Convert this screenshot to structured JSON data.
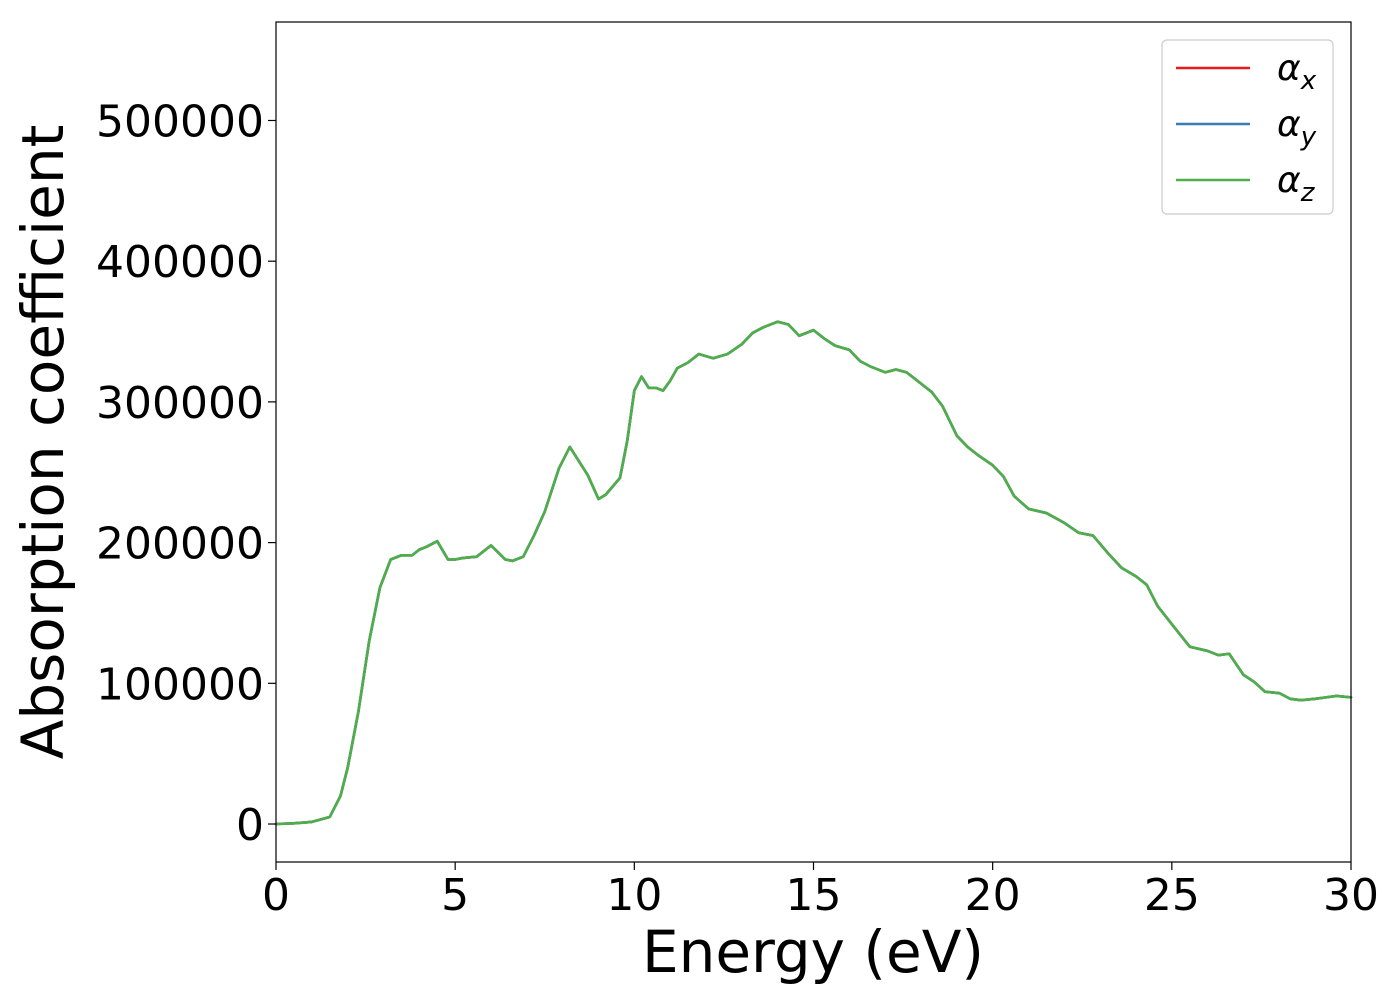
{
  "chart_data": {
    "type": "line",
    "title": "",
    "xlabel": "Energy (eV)",
    "ylabel": "Absorption coefficient",
    "xlim": [
      0,
      30
    ],
    "ylim": [
      -27000,
      570000
    ],
    "xticks": [
      0,
      5,
      10,
      15,
      20,
      25,
      30
    ],
    "xtick_labels": [
      "0",
      "5",
      "10",
      "15",
      "20",
      "25",
      "30"
    ],
    "yticks": [
      0,
      100000,
      200000,
      300000,
      400000,
      500000
    ],
    "ytick_labels": [
      "0",
      "100000",
      "200000",
      "300000",
      "400000",
      "500000"
    ],
    "grid": false,
    "legend_position": "top-right",
    "series": [
      {
        "name_base": "α",
        "name_sub": "x",
        "color": "#e41a1c",
        "x": [
          0,
          0.5,
          1,
          1.5,
          1.8,
          2,
          2.3,
          2.6,
          2.9,
          3.2,
          3.5,
          3.8,
          4,
          4.2,
          4.5,
          4.8,
          5,
          5.2,
          5.6,
          6,
          6.2,
          6.4,
          6.6,
          6.9,
          7.2,
          7.5,
          7.9,
          8.2,
          8.4,
          8.7,
          9,
          9.2,
          9.6,
          9.8,
          10,
          10.2,
          10.4,
          10.6,
          10.8,
          11,
          11.2,
          11.5,
          11.8,
          12.2,
          12.6,
          13,
          13.3,
          13.6,
          14,
          14.3,
          14.6,
          15,
          15.3,
          15.6,
          16,
          16.3,
          16.6,
          17,
          17.3,
          17.6,
          18,
          18.3,
          18.6,
          19,
          19.3,
          19.6,
          20,
          20.3,
          20.6,
          21,
          21.5,
          22,
          22.4,
          22.8,
          23.2,
          23.6,
          24,
          24.3,
          24.6,
          25,
          25.5,
          26,
          26.3,
          26.6,
          27,
          27.3,
          27.6,
          28,
          28.3,
          28.6,
          29,
          29.3,
          29.6,
          30
        ],
        "y": [
          0,
          500,
          1500,
          5000,
          20000,
          40000,
          80000,
          130000,
          168000,
          188000,
          191000,
          191000,
          195000,
          197000,
          201000,
          188000,
          188000,
          189000,
          190000,
          198000,
          193000,
          188000,
          187000,
          190000,
          205000,
          222000,
          253000,
          268000,
          260000,
          248000,
          231000,
          234000,
          246000,
          272000,
          308000,
          318000,
          310000,
          310000,
          308000,
          315000,
          324000,
          328000,
          334000,
          331000,
          334000,
          341000,
          349000,
          353000,
          357000,
          355000,
          347000,
          351000,
          345000,
          340000,
          337000,
          329000,
          325000,
          321000,
          323000,
          321000,
          313000,
          307000,
          297000,
          276000,
          268000,
          262000,
          255000,
          247000,
          233000,
          224000,
          221000,
          214000,
          207000,
          205000,
          193000,
          182000,
          176000,
          170000,
          155000,
          142000,
          126000,
          123000,
          120000,
          121000,
          106000,
          101000,
          94000,
          93000,
          89000,
          88000,
          89000,
          90000,
          91000,
          90000
        ]
      },
      {
        "name_base": "α",
        "name_sub": "y",
        "color": "#377eb8",
        "x": [
          0,
          0.5,
          1,
          1.5,
          1.8,
          2,
          2.3,
          2.6,
          2.9,
          3.2,
          3.5,
          3.8,
          4,
          4.2,
          4.5,
          4.8,
          5,
          5.2,
          5.6,
          6,
          6.2,
          6.4,
          6.6,
          6.9,
          7.2,
          7.5,
          7.9,
          8.2,
          8.4,
          8.7,
          9,
          9.2,
          9.6,
          9.8,
          10,
          10.2,
          10.4,
          10.6,
          10.8,
          11,
          11.2,
          11.5,
          11.8,
          12.2,
          12.6,
          13,
          13.3,
          13.6,
          14,
          14.3,
          14.6,
          15,
          15.3,
          15.6,
          16,
          16.3,
          16.6,
          17,
          17.3,
          17.6,
          18,
          18.3,
          18.6,
          19,
          19.3,
          19.6,
          20,
          20.3,
          20.6,
          21,
          21.5,
          22,
          22.4,
          22.8,
          23.2,
          23.6,
          24,
          24.3,
          24.6,
          25,
          25.5,
          26,
          26.3,
          26.6,
          27,
          27.3,
          27.6,
          28,
          28.3,
          28.6,
          29,
          29.3,
          29.6,
          30
        ],
        "y": [
          0,
          500,
          1500,
          5000,
          20000,
          40000,
          80000,
          130000,
          168000,
          188000,
          191000,
          191000,
          195000,
          197000,
          201000,
          188000,
          188000,
          189000,
          190000,
          198000,
          193000,
          188000,
          187000,
          190000,
          205000,
          222000,
          253000,
          268000,
          260000,
          248000,
          231000,
          234000,
          246000,
          272000,
          308000,
          318000,
          310000,
          310000,
          308000,
          315000,
          324000,
          328000,
          334000,
          331000,
          334000,
          341000,
          349000,
          353000,
          357000,
          355000,
          347000,
          351000,
          345000,
          340000,
          337000,
          329000,
          325000,
          321000,
          323000,
          321000,
          313000,
          307000,
          297000,
          276000,
          268000,
          262000,
          255000,
          247000,
          233000,
          224000,
          221000,
          214000,
          207000,
          205000,
          193000,
          182000,
          176000,
          170000,
          155000,
          142000,
          126000,
          123000,
          120000,
          121000,
          106000,
          101000,
          94000,
          93000,
          89000,
          88000,
          89000,
          90000,
          91000,
          90000
        ]
      },
      {
        "name_base": "α",
        "name_sub": "z",
        "color": "#4daf4a",
        "x": [
          0,
          0.5,
          1,
          1.5,
          1.8,
          2,
          2.3,
          2.6,
          2.9,
          3.2,
          3.5,
          3.8,
          4,
          4.2,
          4.5,
          4.8,
          5,
          5.2,
          5.6,
          6,
          6.2,
          6.4,
          6.6,
          6.9,
          7.2,
          7.5,
          7.9,
          8.2,
          8.4,
          8.7,
          9,
          9.2,
          9.6,
          9.8,
          10,
          10.2,
          10.4,
          10.6,
          10.8,
          11,
          11.2,
          11.5,
          11.8,
          12.2,
          12.6,
          13,
          13.3,
          13.6,
          14,
          14.3,
          14.6,
          15,
          15.3,
          15.6,
          16,
          16.3,
          16.6,
          17,
          17.3,
          17.6,
          18,
          18.3,
          18.6,
          19,
          19.3,
          19.6,
          20,
          20.3,
          20.6,
          21,
          21.5,
          22,
          22.4,
          22.8,
          23.2,
          23.6,
          24,
          24.3,
          24.6,
          25,
          25.5,
          26,
          26.3,
          26.6,
          27,
          27.3,
          27.6,
          28,
          28.3,
          28.6,
          29,
          29.3,
          29.6,
          30
        ],
        "y": [
          0,
          500,
          1500,
          5000,
          20000,
          40000,
          80000,
          130000,
          168000,
          188000,
          191000,
          191000,
          195000,
          197000,
          201000,
          188000,
          188000,
          189000,
          190000,
          198000,
          193000,
          188000,
          187000,
          190000,
          205000,
          222000,
          253000,
          268000,
          260000,
          248000,
          231000,
          234000,
          246000,
          272000,
          308000,
          318000,
          310000,
          310000,
          308000,
          315000,
          324000,
          328000,
          334000,
          331000,
          334000,
          341000,
          349000,
          353000,
          357000,
          355000,
          347000,
          351000,
          345000,
          340000,
          337000,
          329000,
          325000,
          321000,
          323000,
          321000,
          313000,
          307000,
          297000,
          276000,
          268000,
          262000,
          255000,
          247000,
          233000,
          224000,
          221000,
          214000,
          207000,
          205000,
          193000,
          182000,
          176000,
          170000,
          155000,
          142000,
          126000,
          123000,
          120000,
          121000,
          106000,
          101000,
          94000,
          93000,
          89000,
          88000,
          89000,
          90000,
          91000,
          90000
        ]
      }
    ]
  }
}
